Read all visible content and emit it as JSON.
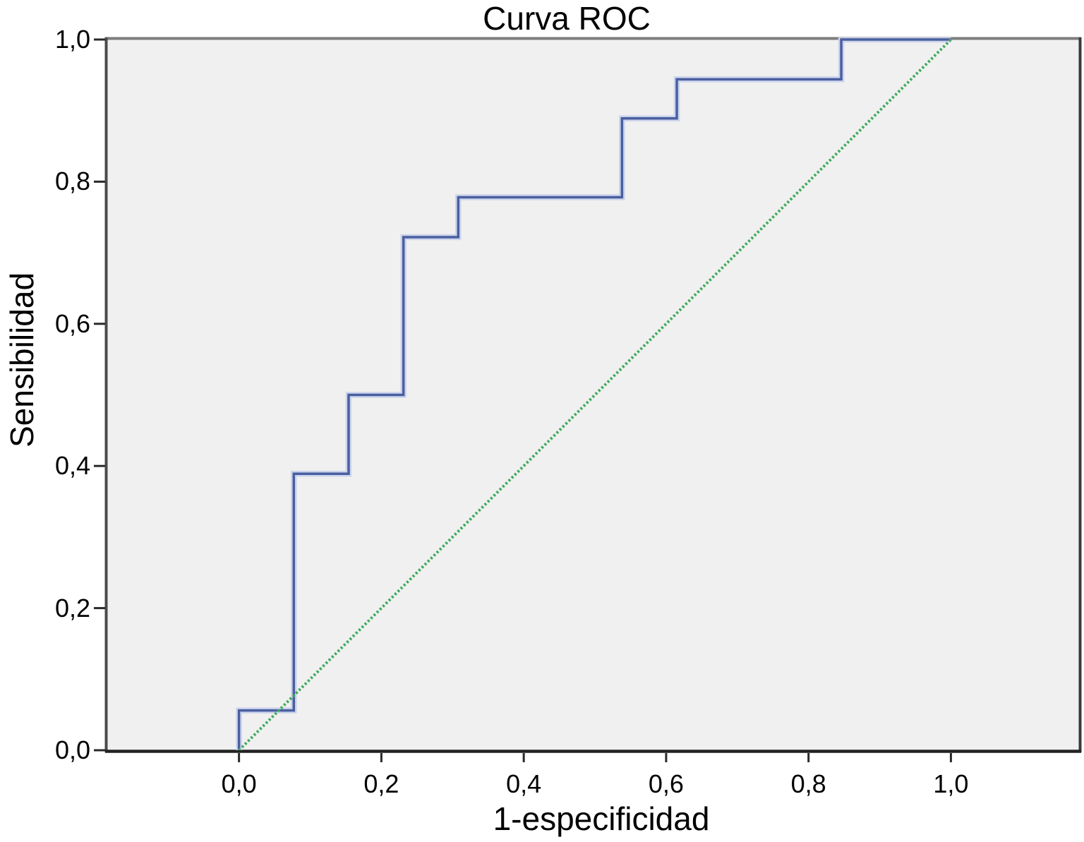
{
  "chart_data": {
    "type": "line",
    "title": "Curva ROC",
    "xlabel": "1-especificidad",
    "ylabel": "Sensibilidad",
    "xlim": [
      -0.185,
      1.18
    ],
    "ylim": [
      0,
      1
    ],
    "grid": false,
    "legend": "none",
    "plot_background": "#f0f0f0",
    "decimal_style_ticks": true,
    "x_ticks": [
      {
        "value": 0.0,
        "label": "0,0"
      },
      {
        "value": 0.2,
        "label": "0,2"
      },
      {
        "value": 0.4,
        "label": "0,4"
      },
      {
        "value": 0.6,
        "label": "0,6"
      },
      {
        "value": 0.8,
        "label": "0,8"
      },
      {
        "value": 1.0,
        "label": "1,0"
      }
    ],
    "y_ticks": [
      {
        "value": 0.0,
        "label": "0,0"
      },
      {
        "value": 0.2,
        "label": "0,2"
      },
      {
        "value": 0.4,
        "label": "0,4"
      },
      {
        "value": 0.6,
        "label": "0,6"
      },
      {
        "value": 0.8,
        "label": "0,8"
      },
      {
        "value": 1.0,
        "label": "1,0"
      }
    ],
    "series": [
      {
        "name": "roc-step-curve",
        "kind": "step",
        "color": "#4a5fa0",
        "halo_color": "#ccd4ec",
        "width": 3.5,
        "points": [
          [
            0,
            0
          ],
          [
            0,
            0.056
          ],
          [
            0.077,
            0.056
          ],
          [
            0.077,
            0.389
          ],
          [
            0.154,
            0.389
          ],
          [
            0.154,
            0.5
          ],
          [
            0.231,
            0.5
          ],
          [
            0.231,
            0.722
          ],
          [
            0.308,
            0.722
          ],
          [
            0.308,
            0.778
          ],
          [
            0.538,
            0.778
          ],
          [
            0.538,
            0.889
          ],
          [
            0.615,
            0.889
          ],
          [
            0.615,
            0.944
          ],
          [
            0.846,
            0.944
          ],
          [
            0.846,
            1
          ],
          [
            1,
            1
          ]
        ]
      },
      {
        "name": "reference-diagonal",
        "kind": "reference",
        "color": "#41ab5d",
        "dash": "3 3",
        "width": 4,
        "points": [
          [
            0,
            0
          ],
          [
            1,
            1
          ]
        ]
      }
    ],
    "border_colors": {
      "top": "#7d7d7d",
      "right": "#3a3a3a",
      "bottom": "#222222",
      "left": "#4a4a4a"
    },
    "tick_color": "#2a2a2a",
    "text_color": "#000000"
  }
}
